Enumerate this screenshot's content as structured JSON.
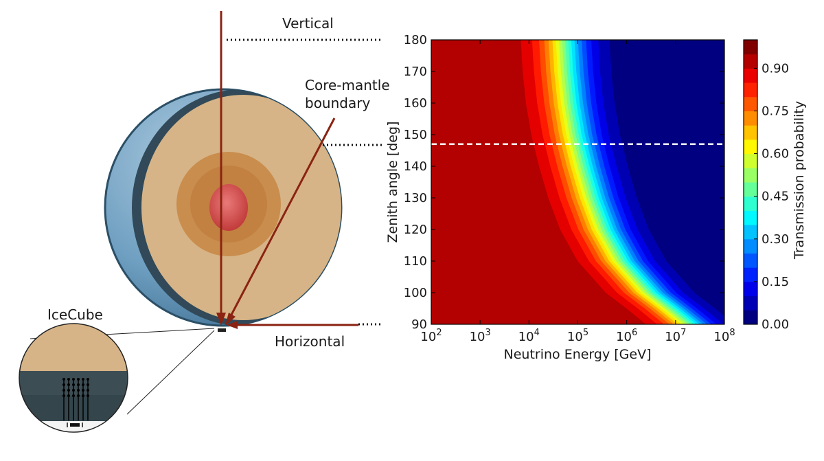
{
  "labels": {
    "vertical": "Vertical",
    "core_mantle_1": "Core-mantle",
    "core_mantle_2": "boundary",
    "icecube": "IceCube",
    "horizontal": "Horizontal"
  },
  "colors": {
    "arrow": "#8b2312",
    "crust": "#d6b487",
    "outer_core": "#c88a48",
    "inner_core": "#d24a4a",
    "ocean": "#4f86b0",
    "ice": "#2f3f45"
  },
  "chart_data": {
    "type": "heatmap",
    "xlabel": "Neutrino Energy [GeV]",
    "ylabel": "Zenith angle [deg]",
    "xscale": "log",
    "xlim": [
      100,
      100000000
    ],
    "ylim": [
      90,
      180
    ],
    "x_ticks": [
      {
        "value": 100,
        "base": "10",
        "exp": "2"
      },
      {
        "value": 1000,
        "base": "10",
        "exp": "3"
      },
      {
        "value": 10000,
        "base": "10",
        "exp": "4"
      },
      {
        "value": 100000,
        "base": "10",
        "exp": "5"
      },
      {
        "value": 1000000,
        "base": "10",
        "exp": "6"
      },
      {
        "value": 10000000,
        "base": "10",
        "exp": "7"
      },
      {
        "value": 100000000,
        "base": "10",
        "exp": "8"
      }
    ],
    "y_ticks": [
      "90",
      "100",
      "110",
      "120",
      "130",
      "140",
      "150",
      "160",
      "170",
      "180"
    ],
    "y_tick_values": [
      90,
      100,
      110,
      120,
      130,
      140,
      150,
      160,
      170,
      180
    ],
    "colorbar": {
      "label": "Transmission probability",
      "range": [
        0,
        1
      ],
      "ticks": [
        "0.00",
        "0.15",
        "0.30",
        "0.45",
        "0.60",
        "0.75",
        "0.90"
      ],
      "tick_values": [
        0.0,
        0.15,
        0.3,
        0.45,
        0.6,
        0.75,
        0.9
      ],
      "levels": 20,
      "colormap": "jet"
    },
    "reference_line": {
      "zenith_deg": 147,
      "style": "dashed",
      "color": "#ffffff"
    },
    "transmission_50pct_energy_gev": [
      {
        "zenith": 90,
        "energy": 20000000
      },
      {
        "zenith": 95,
        "energy": 8000000
      },
      {
        "zenith": 100,
        "energy": 3000000
      },
      {
        "zenith": 110,
        "energy": 800000
      },
      {
        "zenith": 120,
        "energy": 350000
      },
      {
        "zenith": 130,
        "energy": 200000
      },
      {
        "zenith": 140,
        "energy": 130000
      },
      {
        "zenith": 150,
        "energy": 90000
      },
      {
        "zenith": 160,
        "energy": 70000
      },
      {
        "zenith": 170,
        "energy": 60000
      },
      {
        "zenith": 180,
        "energy": 55000
      }
    ],
    "contour_width_decades": 1.1
  }
}
